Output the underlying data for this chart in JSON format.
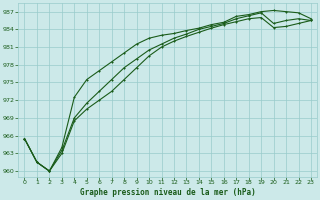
{
  "title": "Graphe pression niveau de la mer (hPa)",
  "background_color": "#cce9e9",
  "grid_color": "#99cccc",
  "line_color": "#1a5c1a",
  "xlim": [
    -0.5,
    23.5
  ],
  "ylim": [
    959,
    988.5
  ],
  "yticks": [
    960,
    963,
    966,
    969,
    972,
    975,
    978,
    981,
    984,
    987
  ],
  "xticks": [
    0,
    1,
    2,
    3,
    4,
    5,
    6,
    7,
    8,
    9,
    10,
    11,
    12,
    13,
    14,
    15,
    16,
    17,
    18,
    19,
    20,
    21,
    22,
    23
  ],
  "series1": [
    965.5,
    961.5,
    960.0,
    964.0,
    972.5,
    975.5,
    977.0,
    978.5,
    980.0,
    981.5,
    982.5,
    983.0,
    983.3,
    983.8,
    984.2,
    984.8,
    985.2,
    986.2,
    986.5,
    987.0,
    987.2,
    987.0,
    986.8,
    985.8
  ],
  "series2": [
    965.5,
    961.5,
    960.0,
    963.0,
    968.5,
    970.5,
    972.0,
    973.5,
    975.5,
    977.5,
    979.5,
    981.0,
    982.0,
    982.8,
    983.5,
    984.2,
    984.8,
    985.3,
    985.8,
    986.0,
    984.3,
    984.5,
    985.0,
    985.5
  ],
  "series3": [
    965.5,
    961.5,
    960.0,
    963.5,
    969.0,
    971.5,
    973.5,
    975.5,
    977.5,
    979.0,
    980.5,
    981.5,
    982.5,
    983.2,
    984.0,
    984.5,
    985.0,
    985.8,
    986.3,
    986.8,
    985.0,
    985.5,
    985.8,
    985.5
  ]
}
